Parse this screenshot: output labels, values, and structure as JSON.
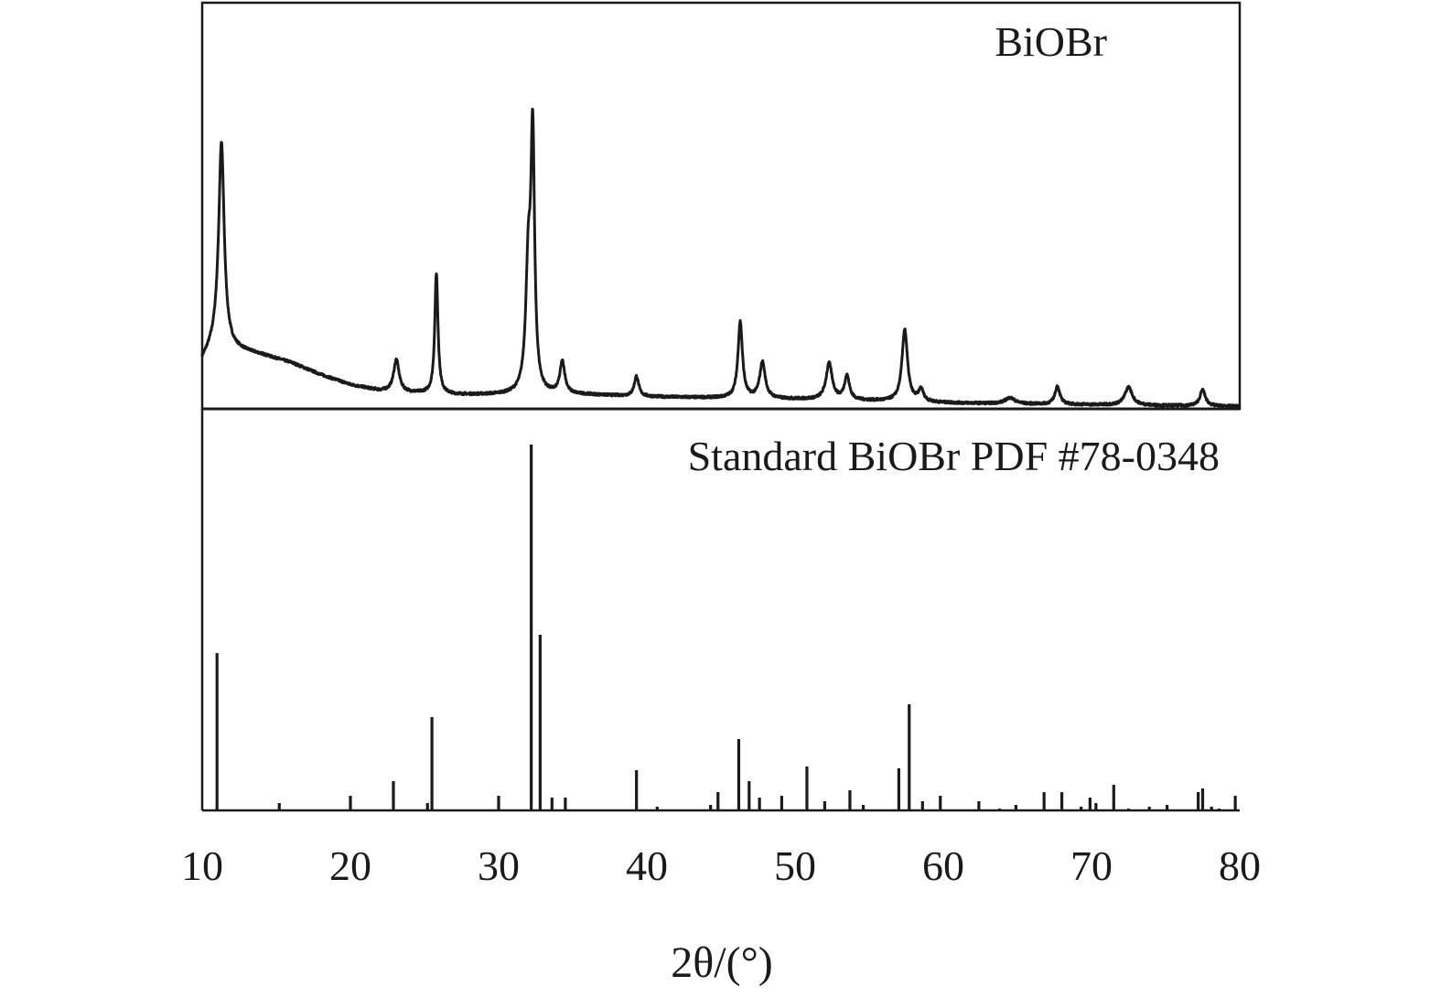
{
  "chart_data": {
    "type": "line",
    "xlabel": "2θ/(°)",
    "xlim": [
      10,
      80
    ],
    "xticks": [
      10,
      20,
      30,
      40,
      50,
      60,
      70,
      80
    ],
    "grid": false,
    "panels": [
      {
        "id": "measured",
        "label": "BiOBr",
        "label_position": "top-right",
        "type": "line",
        "ylim": [
          0,
          1
        ],
        "background": [
          [
            10,
            0.12
          ],
          [
            11,
            0.17
          ],
          [
            12,
            0.15
          ],
          [
            14,
            0.135
          ],
          [
            16,
            0.115
          ],
          [
            18,
            0.085
          ],
          [
            20,
            0.06
          ],
          [
            22,
            0.045
          ],
          [
            24,
            0.04
          ],
          [
            27,
            0.035
          ],
          [
            30,
            0.035
          ],
          [
            33,
            0.035
          ],
          [
            36,
            0.035
          ],
          [
            40,
            0.03
          ],
          [
            45,
            0.027
          ],
          [
            50,
            0.024
          ],
          [
            55,
            0.02
          ],
          [
            60,
            0.015
          ],
          [
            65,
            0.012
          ],
          [
            70,
            0.01
          ],
          [
            75,
            0.008
          ],
          [
            80,
            0.006
          ]
        ],
        "peaks": [
          {
            "x": 11.3,
            "height": 0.5,
            "width": 0.22
          },
          {
            "x": 23.1,
            "height": 0.08,
            "width": 0.22
          },
          {
            "x": 25.8,
            "height": 0.3,
            "width": 0.13
          },
          {
            "x": 32.0,
            "height": 0.3,
            "width": 0.2
          },
          {
            "x": 32.3,
            "height": 0.62,
            "width": 0.15
          },
          {
            "x": 34.3,
            "height": 0.08,
            "width": 0.2
          },
          {
            "x": 39.3,
            "height": 0.05,
            "width": 0.18
          },
          {
            "x": 46.3,
            "height": 0.19,
            "width": 0.18
          },
          {
            "x": 47.8,
            "height": 0.09,
            "width": 0.22
          },
          {
            "x": 52.3,
            "height": 0.09,
            "width": 0.25
          },
          {
            "x": 53.5,
            "height": 0.06,
            "width": 0.2
          },
          {
            "x": 57.4,
            "height": 0.18,
            "width": 0.22
          },
          {
            "x": 58.5,
            "height": 0.03,
            "width": 0.2
          },
          {
            "x": 64.5,
            "height": 0.015,
            "width": 0.4
          },
          {
            "x": 67.7,
            "height": 0.045,
            "width": 0.2
          },
          {
            "x": 72.5,
            "height": 0.045,
            "width": 0.3
          },
          {
            "x": 77.5,
            "height": 0.04,
            "width": 0.22
          }
        ]
      },
      {
        "id": "standard",
        "label": "Standard BiOBr PDF #78-0348",
        "label_position": "top-right",
        "type": "stick",
        "ylim": [
          0,
          1
        ],
        "sticks": [
          [
            11.0,
            0.43
          ],
          [
            15.2,
            0.02
          ],
          [
            20.0,
            0.04
          ],
          [
            22.9,
            0.08
          ],
          [
            25.2,
            0.02
          ],
          [
            25.5,
            0.255
          ],
          [
            30.0,
            0.04
          ],
          [
            32.2,
            1.0
          ],
          [
            32.8,
            0.48
          ],
          [
            33.6,
            0.035
          ],
          [
            34.5,
            0.035
          ],
          [
            39.3,
            0.11
          ],
          [
            40.7,
            0.01
          ],
          [
            44.3,
            0.015
          ],
          [
            44.8,
            0.05
          ],
          [
            46.2,
            0.195
          ],
          [
            46.9,
            0.08
          ],
          [
            47.6,
            0.035
          ],
          [
            49.1,
            0.04
          ],
          [
            50.8,
            0.12
          ],
          [
            52.0,
            0.025
          ],
          [
            53.7,
            0.055
          ],
          [
            54.6,
            0.015
          ],
          [
            57.0,
            0.115
          ],
          [
            57.7,
            0.29
          ],
          [
            58.6,
            0.025
          ],
          [
            59.8,
            0.04
          ],
          [
            62.4,
            0.025
          ],
          [
            63.8,
            0.005
          ],
          [
            64.9,
            0.015
          ],
          [
            66.8,
            0.05
          ],
          [
            68.0,
            0.05
          ],
          [
            69.3,
            0.01
          ],
          [
            69.9,
            0.035
          ],
          [
            70.3,
            0.02
          ],
          [
            71.5,
            0.07
          ],
          [
            72.5,
            0.005
          ],
          [
            73.9,
            0.01
          ],
          [
            75.1,
            0.015
          ],
          [
            77.2,
            0.05
          ],
          [
            77.5,
            0.06
          ],
          [
            78.1,
            0.01
          ],
          [
            78.6,
            0.005
          ],
          [
            79.7,
            0.04
          ]
        ]
      }
    ]
  }
}
